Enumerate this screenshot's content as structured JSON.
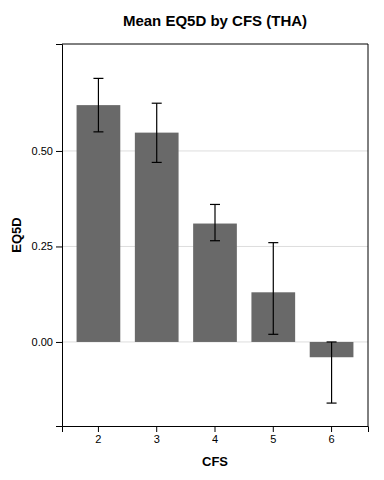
{
  "chart_data": {
    "type": "bar",
    "title": "Mean EQ5D by CFS (THA)",
    "xlabel": "CFS",
    "ylabel": "EQ5D",
    "categories": [
      "2",
      "3",
      "4",
      "5",
      "6"
    ],
    "values": [
      0.62,
      0.548,
      0.31,
      0.13,
      -0.04
    ],
    "error_upper": [
      0.69,
      0.625,
      0.36,
      0.26,
      0.0
    ],
    "error_lower": [
      0.55,
      0.47,
      0.265,
      0.02,
      -0.16
    ],
    "color": "#696969",
    "ylim": [
      -0.22,
      0.78
    ],
    "yticks": [
      {
        "value": 0.0,
        "label": "0.00"
      },
      0.25,
      {
        "value": 0.5,
        "label": "0.50"
      }
    ],
    "grid": true
  }
}
